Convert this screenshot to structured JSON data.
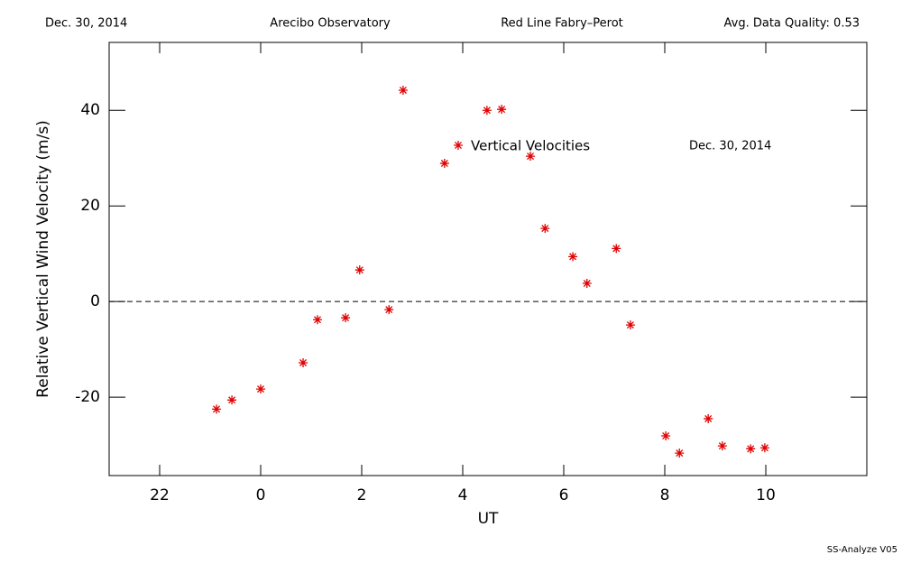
{
  "chart_data": {
    "type": "scatter",
    "header": [
      "Dec. 30, 2014",
      "Arecibo Observatory",
      "Red Line Fabry–Perot",
      "Avg. Data Quality: 0.53"
    ],
    "annotation": "Dec. 30, 2014",
    "footer": "SS-Analyze V05",
    "x_label": "UT",
    "y_label": "Relative Vertical Wind Velocity (m/s)",
    "xlim": [
      -3,
      12
    ],
    "xticks": [
      {
        "value": -2,
        "label": "22"
      },
      0,
      2,
      4,
      6,
      8,
      10
    ],
    "ylim": [
      -36.4,
      54.2
    ],
    "yticks": [
      -20,
      0,
      20,
      40
    ],
    "zero_line": true,
    "series": [
      {
        "name": "Vertical Velocities",
        "color": "#e00000",
        "x": [
          -0.875,
          -0.57,
          0,
          0.84,
          1.125,
          1.68,
          1.96,
          2.54,
          2.82,
          3.64,
          4.48,
          4.77,
          5.34,
          5.63,
          6.18,
          6.46,
          7.04,
          7.32,
          8.02,
          8.29,
          8.86,
          9.14,
          9.7,
          9.98
        ],
        "values": [
          -22.5,
          -20.6,
          -18.3,
          -12.8,
          -3.8,
          -3.4,
          6.6,
          -1.7,
          44.2,
          28.9,
          40.0,
          40.2,
          30.4,
          15.3,
          9.4,
          3.8,
          11.1,
          -4.9,
          -28.1,
          -31.7,
          -24.5,
          -30.2,
          -30.8,
          -30.6
        ]
      }
    ]
  }
}
